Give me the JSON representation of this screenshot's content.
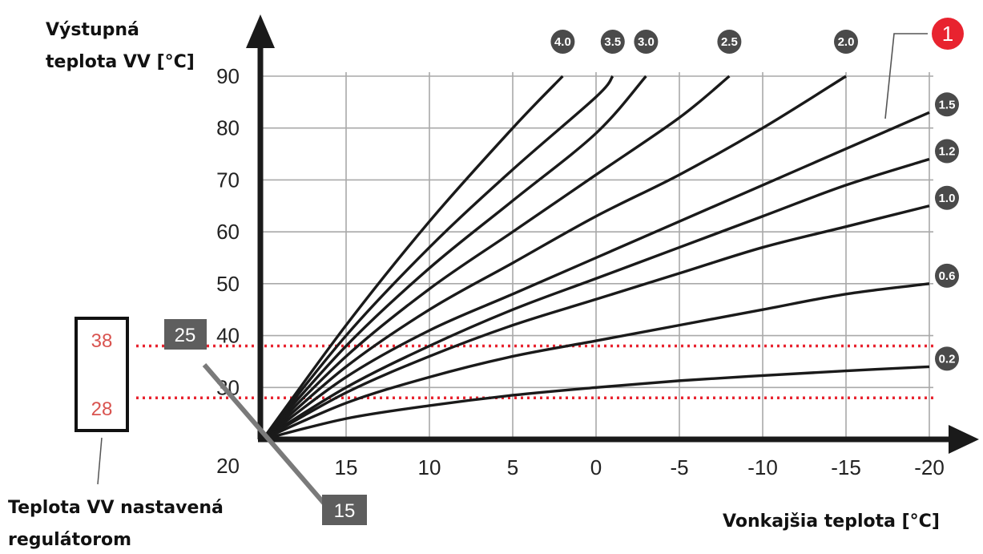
{
  "texts": {
    "ylabel_line1": "Výstupná",
    "ylabel_line2": "teplota VV [°C]",
    "xlabel": "Vonkajšia teplota [°C]",
    "reg_label_line1": "Teplota VV nastavená",
    "reg_label_line2": "regulátorom",
    "marker": "1",
    "room_high": "25",
    "room_low": "15"
  },
  "colors": {
    "curve": "#1a1a1a",
    "grid": "#a9a9a9",
    "dotted": "#e8232f",
    "badge": "#4a4a4a",
    "marker": "#e8232f",
    "reg_value": "#d9534f"
  },
  "chart_data": {
    "type": "line",
    "x_ticks": [
      "15",
      "10",
      "5",
      "0",
      "-5",
      "-10",
      "-15",
      "-20"
    ],
    "y_ticks": [
      "20",
      "30",
      "40",
      "50",
      "60",
      "70",
      "80",
      "90"
    ],
    "xlim": [
      20,
      -20
    ],
    "ylim": [
      20,
      90
    ],
    "series": [
      {
        "name": "4.0",
        "x": [
          20,
          15,
          10,
          5,
          2
        ],
        "y": [
          20,
          42,
          62,
          80,
          90
        ]
      },
      {
        "name": "3.5",
        "x": [
          20,
          15,
          10,
          5,
          0,
          -1
        ],
        "y": [
          20,
          40,
          57,
          72,
          86,
          90
        ]
      },
      {
        "name": "3.0",
        "x": [
          20,
          15,
          10,
          5,
          0,
          -3
        ],
        "y": [
          20,
          38,
          53,
          66,
          79,
          90
        ]
      },
      {
        "name": "2.5",
        "x": [
          20,
          15,
          10,
          5,
          0,
          -5,
          -8
        ],
        "y": [
          20,
          36,
          49,
          60,
          71,
          82,
          90
        ]
      },
      {
        "name": "2.0",
        "x": [
          20,
          15,
          10,
          5,
          0,
          -5,
          -10,
          -15
        ],
        "y": [
          20,
          34,
          45,
          54,
          63,
          71,
          80,
          90
        ]
      },
      {
        "name": "1.5",
        "x": [
          20,
          15,
          10,
          5,
          0,
          -5,
          -10,
          -15,
          -20
        ],
        "y": [
          20,
          32,
          41,
          48,
          55,
          62,
          69,
          76,
          83
        ]
      },
      {
        "name": "1.2",
        "x": [
          20,
          15,
          10,
          5,
          0,
          -5,
          -10,
          -15,
          -20
        ],
        "y": [
          20,
          30,
          38,
          45,
          51,
          57,
          63,
          69,
          74
        ]
      },
      {
        "name": "1.0",
        "x": [
          20,
          15,
          10,
          5,
          0,
          -5,
          -10,
          -15,
          -20
        ],
        "y": [
          20,
          29,
          36,
          42,
          47,
          52,
          57,
          61,
          65
        ]
      },
      {
        "name": "0.6",
        "x": [
          20,
          15,
          10,
          5,
          0,
          -5,
          -10,
          -15,
          -20
        ],
        "y": [
          20,
          27,
          32,
          36,
          39,
          42,
          45,
          48,
          50
        ]
      },
      {
        "name": "0.2",
        "x": [
          20,
          15,
          10,
          5,
          0,
          -5,
          -10,
          -15,
          -20
        ],
        "y": [
          20,
          24,
          26.5,
          28.5,
          30,
          31.3,
          32.3,
          33.2,
          34
        ]
      }
    ],
    "reference_lines": [
      {
        "label": "38",
        "y": 38
      },
      {
        "label": "28",
        "y": 28
      }
    ]
  }
}
